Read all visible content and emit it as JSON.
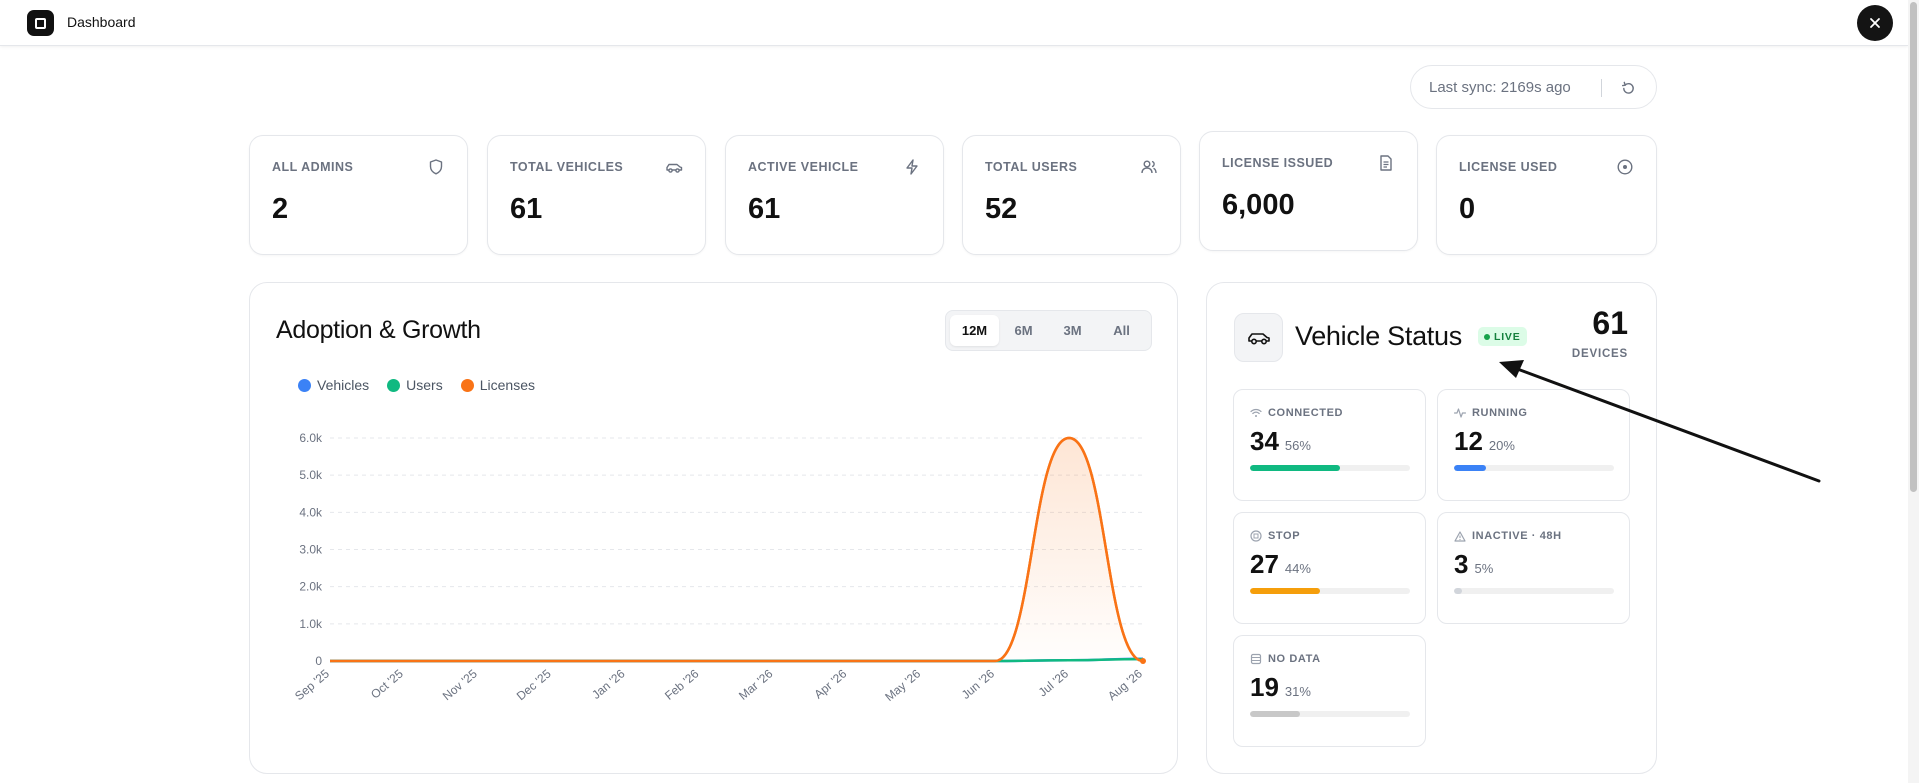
{
  "header": {
    "title": "Dashboard",
    "logo_icon": "app-logo-icon",
    "close_icon": "close-icon"
  },
  "sync": {
    "text": "Last sync: 2169s ago",
    "refresh_icon": "refresh-icon"
  },
  "stats": [
    {
      "label": "ALL ADMINS",
      "value": "2",
      "icon": "shield-icon"
    },
    {
      "label": "TOTAL VEHICLES",
      "value": "61",
      "icon": "car-icon"
    },
    {
      "label": "ACTIVE VEHICLE",
      "value": "61",
      "icon": "lightning-icon"
    },
    {
      "label": "TOTAL USERS",
      "value": "52",
      "icon": "users-icon"
    },
    {
      "label": "LICENSE ISSUED",
      "value": "6,000",
      "icon": "document-icon"
    },
    {
      "label": "LICENSE USED",
      "value": "0",
      "icon": "target-icon"
    }
  ],
  "adoption": {
    "title": "Adoption & Growth",
    "ranges": [
      "12M",
      "6M",
      "3M",
      "All"
    ],
    "active_range": "12M"
  },
  "chart_data": {
    "type": "line",
    "title": "Adoption & Growth",
    "xlabel": "",
    "ylabel": "",
    "categories": [
      "Sep '25",
      "Oct '25",
      "Nov '25",
      "Dec '25",
      "Jan '26",
      "Feb '26",
      "Mar '26",
      "Apr '26",
      "May '26",
      "Jun '26",
      "Jul '26",
      "Aug '26"
    ],
    "series": [
      {
        "name": "Vehicles",
        "color": "#3b82f6",
        "values": [
          0,
          0,
          0,
          0,
          0,
          0,
          0,
          0,
          0,
          0,
          20,
          61
        ]
      },
      {
        "name": "Users",
        "color": "#10b981",
        "values": [
          0,
          0,
          0,
          0,
          0,
          0,
          0,
          0,
          0,
          0,
          20,
          52
        ]
      },
      {
        "name": "Licenses",
        "color": "#f97316",
        "values": [
          0,
          0,
          0,
          0,
          0,
          0,
          0,
          0,
          0,
          0,
          6000,
          0
        ]
      }
    ],
    "ylim": [
      0,
      6000
    ],
    "yticks": [
      "0",
      "1.0k",
      "2.0k",
      "3.0k",
      "4.0k",
      "5.0k",
      "6.0k"
    ],
    "grid": true,
    "legend": "top-left"
  },
  "vehicle_status": {
    "title": "Vehicle Status",
    "live_label": "LIVE",
    "total": "61",
    "total_label": "DEVICES",
    "tiles": [
      {
        "label": "CONNECTED",
        "value": "34",
        "pct": "56%",
        "fraction": 0.56,
        "color": "#10b981",
        "icon": "wifi-icon"
      },
      {
        "label": "RUNNING",
        "value": "12",
        "pct": "20%",
        "fraction": 0.2,
        "color": "#3b82f6",
        "icon": "activity-icon"
      },
      {
        "label": "STOP",
        "value": "27",
        "pct": "44%",
        "fraction": 0.44,
        "color": "#f59e0b",
        "icon": "stop-circle-icon"
      },
      {
        "label": "INACTIVE · 48H",
        "value": "3",
        "pct": "5%",
        "fraction": 0.05,
        "color": "#d1d5db",
        "icon": "warning-icon"
      },
      {
        "label": "NO DATA",
        "value": "19",
        "pct": "31%",
        "fraction": 0.31,
        "color": "#c8c8c8",
        "icon": "database-icon"
      }
    ]
  }
}
